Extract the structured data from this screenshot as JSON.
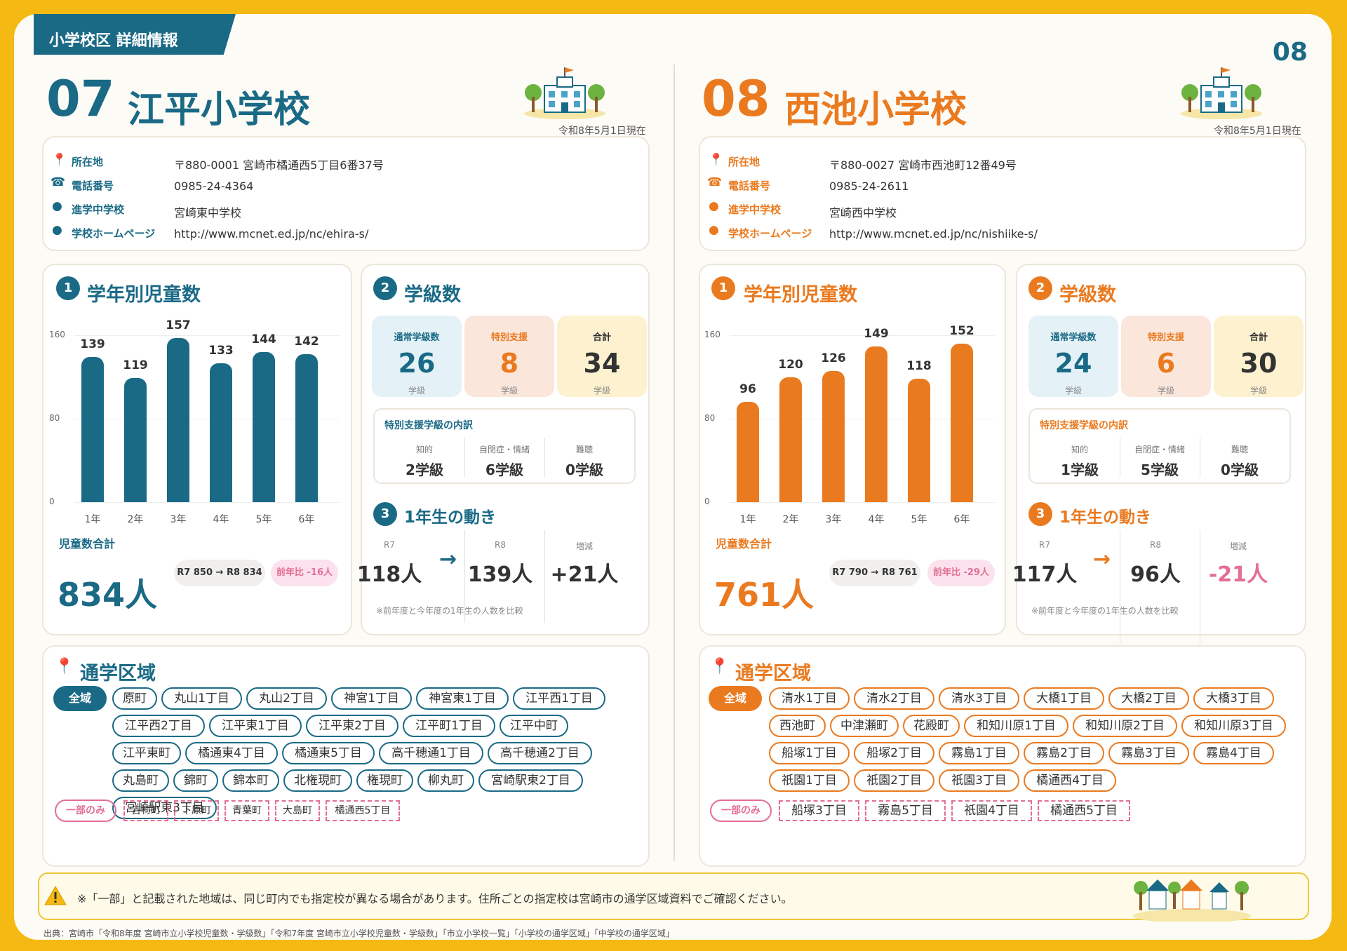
{
  "header": {
    "section_label": "小学校区 詳細情報",
    "page_number": "08"
  },
  "schools": [
    {
      "number": "07",
      "name": "江平小学校",
      "as_of": "令和8年5月1日現在",
      "accent": "#1a6a86",
      "info": [
        {
          "icon": "location-pin-icon",
          "label": "所在地",
          "value": "〒880-0001 宮崎市橘通西5丁目6番37号"
        },
        {
          "icon": "phone-icon",
          "label": "電話番号",
          "value": "0985-24-4364"
        },
        {
          "icon": "dot-icon",
          "label": "進学中学校",
          "value": "宮崎東中学校"
        },
        {
          "icon": "dot-icon",
          "label": "学校ホームページ",
          "value": "http://www.mcnet.ed.jp/nc/ehira-s/"
        }
      ],
      "students": {
        "badge": "1",
        "title": "学年別児童数",
        "total_label": "児童数合計",
        "total": "834人",
        "compare": "R7 850 → R8 834",
        "yoy": "前年比 -16人",
        "chart_data": {
          "type": "bar",
          "categories": [
            "1年",
            "2年",
            "3年",
            "4年",
            "5年",
            "6年"
          ],
          "values": [
            139,
            119,
            157,
            133,
            144,
            142
          ],
          "ylim": [
            0,
            160
          ],
          "yticks": [
            0,
            80,
            160
          ],
          "bar_color": "#1a6a86"
        }
      },
      "classes": {
        "badge": "2",
        "title": "学級数",
        "boxes": [
          {
            "label": "通常学級数",
            "value": "26",
            "unit": "学級",
            "bg": "#e4f1f6",
            "color": "#1a6a86"
          },
          {
            "label": "特別支援",
            "value": "8",
            "unit": "学級",
            "bg": "#fbe6dc",
            "color": "#ea7a1f"
          },
          {
            "label": "合計",
            "value": "34",
            "unit": "学級",
            "bg": "#fdf1cf",
            "color": "#333333"
          }
        ],
        "breakdown_title": "特別支援学級の内訳",
        "breakdown": [
          {
            "label": "知的",
            "value": "2学級"
          },
          {
            "label": "自閉症・情緒",
            "value": "6学級"
          },
          {
            "label": "難聴",
            "value": "0学級"
          }
        ]
      },
      "movement": {
        "badge": "3",
        "title": "1年生の動き",
        "prev_label": "R7",
        "prev": "118人",
        "arrow": "→",
        "cur_label": "R8",
        "cur": "139人",
        "diff_label": "増減",
        "diff": "+21人",
        "note": "※前年度と今年度の1年生の人数を比較"
      },
      "district": {
        "title": "通学区域",
        "all_label": "全域",
        "areas": [
          "原町",
          "丸山1丁目",
          "丸山2丁目",
          "神宮1丁目",
          "神宮東1丁目",
          "江平西1丁目",
          "江平西2丁目",
          "江平東1丁目",
          "江平東2丁目",
          "江平町1丁目",
          "江平中町",
          "江平東町",
          "橘通東4丁目",
          "橘通東5丁目",
          "高千穂通1丁目",
          "高千穂通2丁目",
          "丸島町",
          "錦町",
          "錦本町",
          "北権現町",
          "権現町",
          "柳丸町",
          "宮崎駅東2丁目",
          "宮崎駅東3丁目"
        ],
        "partial_label": "一部のみ",
        "partial": [
          "吉村町",
          "下原町",
          "青葉町",
          "大島町",
          "橘通西5丁目"
        ]
      }
    },
    {
      "number": "08",
      "name": "西池小学校",
      "as_of": "令和8年5月1日現在",
      "accent": "#ea7a1f",
      "info": [
        {
          "icon": "location-pin-icon",
          "label": "所在地",
          "value": "〒880-0027 宮崎市西池町12番49号"
        },
        {
          "icon": "phone-icon",
          "label": "電話番号",
          "value": "0985-24-2611"
        },
        {
          "icon": "dot-icon",
          "label": "進学中学校",
          "value": "宮崎西中学校"
        },
        {
          "icon": "dot-icon",
          "label": "学校ホームページ",
          "value": "http://www.mcnet.ed.jp/nc/nishiike-s/"
        }
      ],
      "students": {
        "badge": "1",
        "title": "学年別児童数",
        "total_label": "児童数合計",
        "total": "761人",
        "compare": "R7 790 → R8 761",
        "yoy": "前年比 -29人",
        "chart_data": {
          "type": "bar",
          "categories": [
            "1年",
            "2年",
            "3年",
            "4年",
            "5年",
            "6年"
          ],
          "values": [
            96,
            120,
            126,
            149,
            118,
            152
          ],
          "ylim": [
            0,
            160
          ],
          "yticks": [
            0,
            80,
            160
          ],
          "bar_color": "#ea7a1f"
        }
      },
      "classes": {
        "badge": "2",
        "title": "学級数",
        "boxes": [
          {
            "label": "通常学級数",
            "value": "24",
            "unit": "学級",
            "bg": "#e4f1f6",
            "color": "#1a6a86"
          },
          {
            "label": "特別支援",
            "value": "6",
            "unit": "学級",
            "bg": "#fbe6dc",
            "color": "#ea7a1f"
          },
          {
            "label": "合計",
            "value": "30",
            "unit": "学級",
            "bg": "#fdf1cf",
            "color": "#333333"
          }
        ],
        "breakdown_title": "特別支援学級の内訳",
        "breakdown": [
          {
            "label": "知的",
            "value": "1学級"
          },
          {
            "label": "自閉症・情緒",
            "value": "5学級"
          },
          {
            "label": "難聴",
            "value": "0学級"
          }
        ]
      },
      "movement": {
        "badge": "3",
        "title": "1年生の動き",
        "prev_label": "R7",
        "prev": "117人",
        "arrow": "→",
        "cur_label": "R8",
        "cur": "96人",
        "diff_label": "増減",
        "diff": "-21人",
        "note": "※前年度と今年度の1年生の人数を比較"
      },
      "district": {
        "title": "通学区域",
        "all_label": "全域",
        "areas": [
          "清水1丁目",
          "清水2丁目",
          "清水3丁目",
          "大橋1丁目",
          "大橋2丁目",
          "大橋3丁目",
          "西池町",
          "中津瀬町",
          "花殿町",
          "和知川原1丁目",
          "和知川原2丁目",
          "和知川原3丁目",
          "船塚1丁目",
          "船塚2丁目",
          "霧島1丁目",
          "霧島2丁目",
          "霧島3丁目",
          "霧島4丁目",
          "祇園1丁目",
          "祇園2丁目",
          "祇園3丁目",
          "橘通西4丁目"
        ],
        "partial_label": "一部のみ",
        "partial": [
          "船塚3丁目",
          "霧島5丁目",
          "祇園4丁目",
          "橘通西5丁目"
        ]
      }
    }
  ],
  "footer": {
    "note": "※「一部」と記載された地域は、同じ町内でも指定校が異なる場合があります。住所ごとの指定校は宮崎市の通学区域資料でご確認ください。",
    "source": "出典：宮崎市「令和8年度 宮崎市立小学校児童数・学級数」「令和7年度 宮崎市立小学校児童数・学級数」「市立小学校一覧」「小学校の通学区域」「中学校の通学区域」",
    "colors": {
      "page_bg": "#f5b913",
      "teal": "#1a6a86",
      "orange": "#ea7a1f",
      "pink": "#e36e96"
    }
  }
}
